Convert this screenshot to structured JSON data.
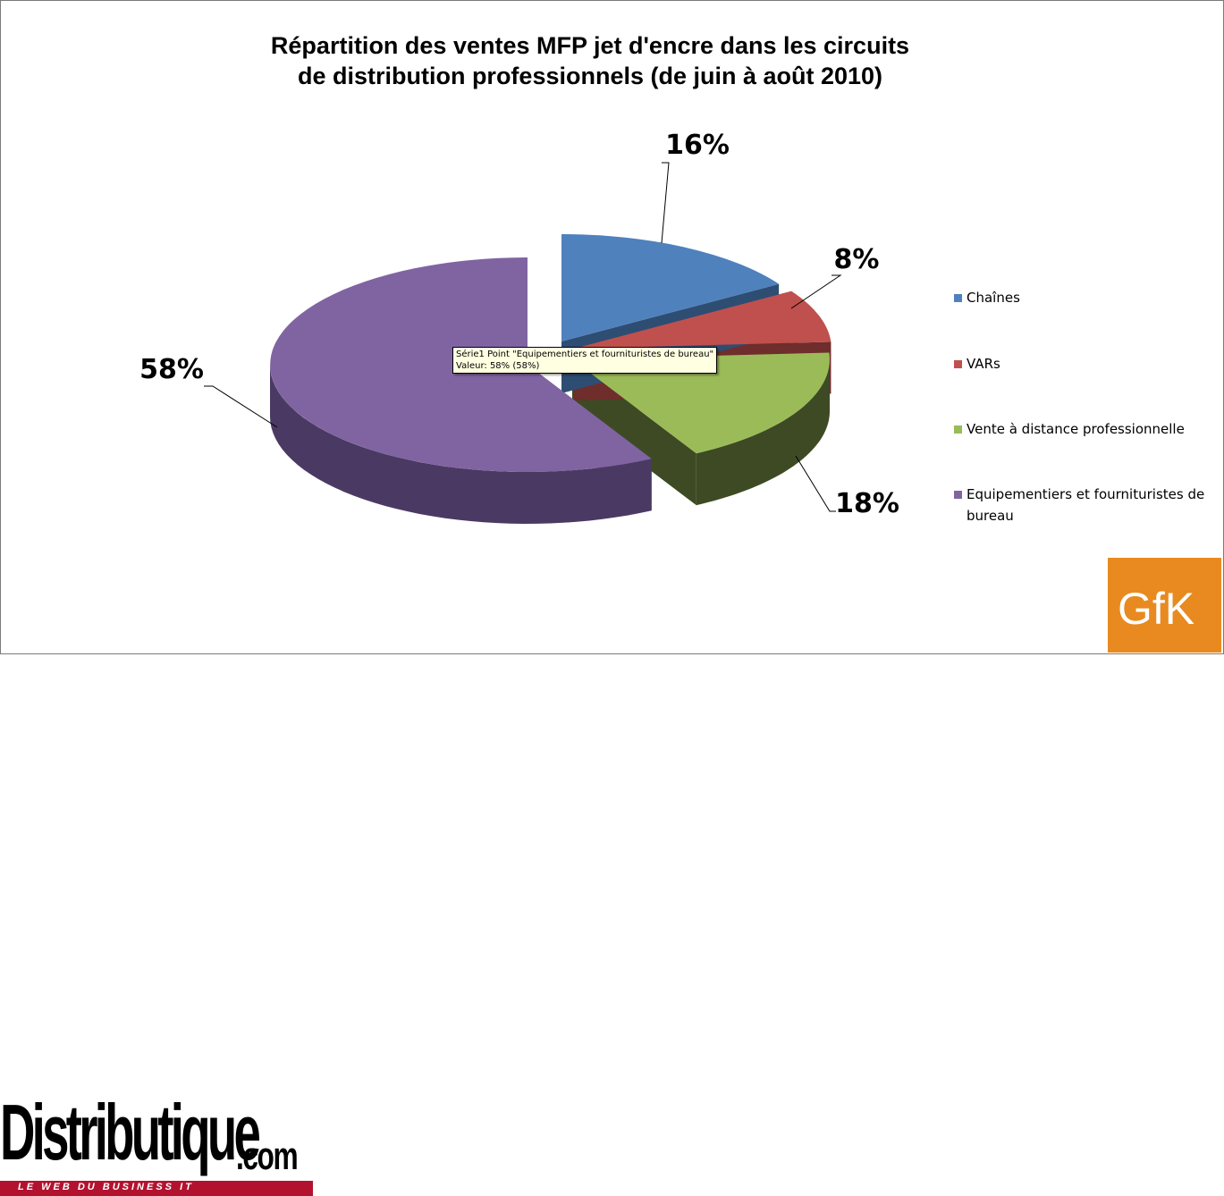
{
  "chart_data": {
    "type": "pie",
    "title": "Répartition des ventes MFP jet d'encre dans les circuits de distribution professionnels (de juin à août 2010)",
    "title_lines": [
      "Répartition des ventes MFP jet d'encre dans les circuits",
      "de distribution professionnels (de juin à août 2010)"
    ],
    "categories": [
      "Chaînes",
      "VARs",
      "Vente à distance professionnelle",
      "Equipementiers et fournituristes de bureau"
    ],
    "values": [
      16,
      8,
      18,
      58
    ],
    "value_labels": [
      "16%",
      "8%",
      "18%",
      "58%"
    ],
    "colors": [
      "#4f81bd",
      "#c0504d",
      "#9bbb59",
      "#8064a2"
    ],
    "side_colors": [
      "#2e4d73",
      "#6f2d2b",
      "#3e4a24",
      "#4a3a63"
    ],
    "legend_position": "right",
    "legend_labels": [
      [
        "Chaînes"
      ],
      [
        "VARs"
      ],
      [
        "Vente à distance professionnelle"
      ],
      [
        "Equipementiers et fournituristes de",
        "bureau"
      ]
    ],
    "tooltip": {
      "line1": "Série1 Point \"Equipementiers et fournituristes de bureau\"",
      "line2": "Valeur: 58% (58%)"
    }
  },
  "logos": {
    "left_word": "Distributique",
    "left_suffix": ".com",
    "left_tagline": "LE WEB DU BUSINESS IT",
    "right": "GfK"
  }
}
